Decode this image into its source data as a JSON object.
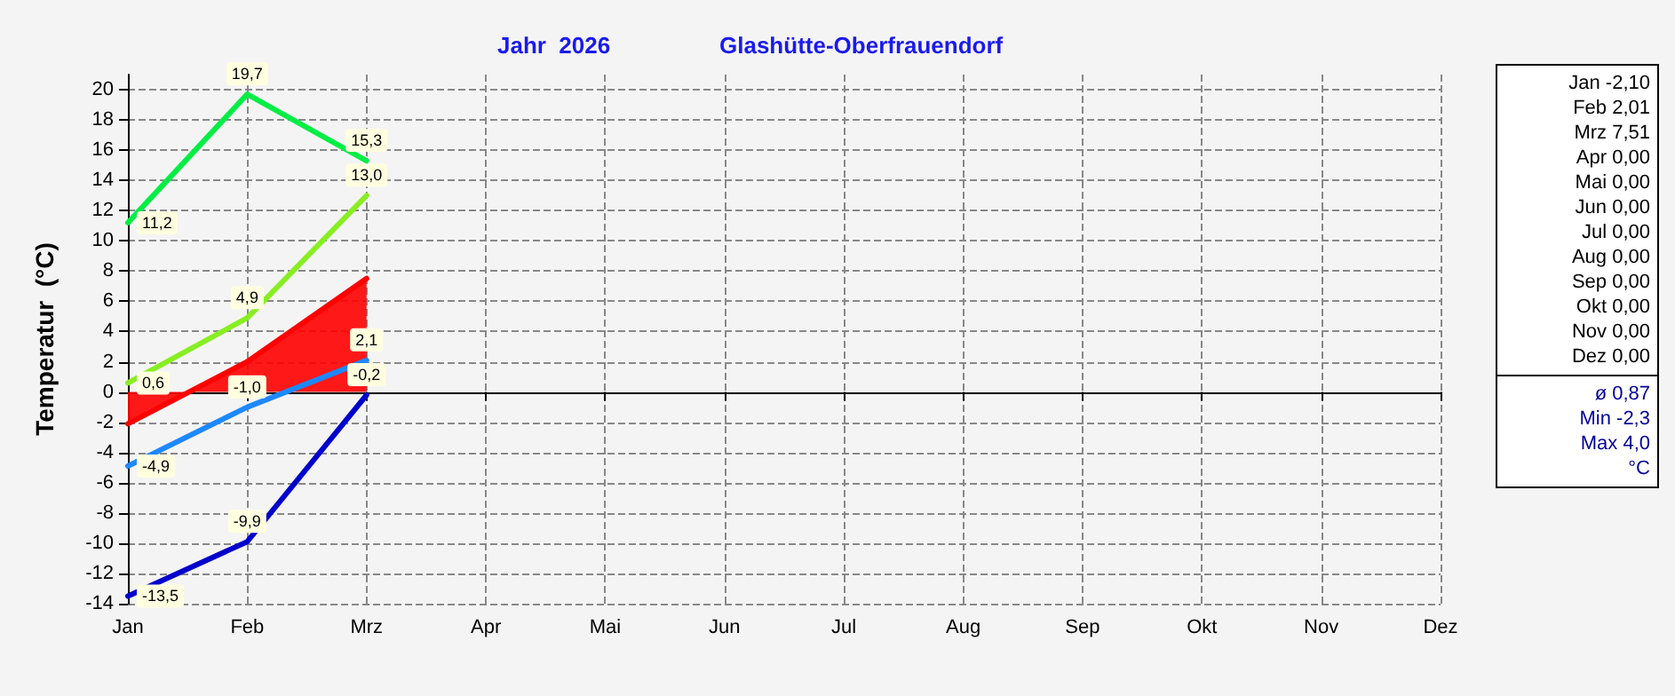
{
  "chart_data": {
    "type": "line",
    "title": "Jahr  2026",
    "subtitle": "Glashütte-Oberfrauendorf",
    "ylabel": "Temperatur  (°C)",
    "categories": [
      "Jan",
      "Feb",
      "Mrz",
      "Apr",
      "Mai",
      "Jun",
      "Jul",
      "Aug",
      "Sep",
      "Okt",
      "Nov",
      "Dez"
    ],
    "ylim": [
      -14,
      21
    ],
    "yticks": [
      -14,
      -12,
      -10,
      -8,
      -6,
      -4,
      -2,
      0,
      2,
      4,
      6,
      8,
      10,
      12,
      14,
      16,
      18,
      20
    ],
    "series": [
      {
        "type": "area",
        "color": "#ff0000",
        "values": [
          -2.1,
          2.01,
          7.51,
          null,
          null,
          null,
          null,
          null,
          null,
          null,
          null,
          null
        ]
      },
      {
        "color": "#00ee44",
        "values": [
          11.2,
          19.7,
          15.3,
          null,
          null,
          null,
          null,
          null,
          null,
          null,
          null,
          null
        ],
        "value_labels": [
          "11,2",
          "19,7",
          "15,3",
          null,
          null,
          null,
          null,
          null,
          null,
          null,
          null,
          null
        ]
      },
      {
        "color": "#88ee22",
        "values": [
          0.6,
          4.9,
          13.0,
          null,
          null,
          null,
          null,
          null,
          null,
          null,
          null,
          null
        ],
        "value_labels": [
          "0,6",
          "4,9",
          "13,0",
          null,
          null,
          null,
          null,
          null,
          null,
          null,
          null,
          null
        ]
      },
      {
        "color": "#1e88ff",
        "values": [
          -4.9,
          -1.0,
          2.1,
          null,
          null,
          null,
          null,
          null,
          null,
          null,
          null,
          null
        ],
        "value_labels": [
          "-4,9",
          "-1,0",
          "2,1",
          null,
          null,
          null,
          null,
          null,
          null,
          null,
          null,
          null
        ]
      },
      {
        "color": "#0000cc",
        "values": [
          -13.5,
          -9.9,
          -0.2,
          null,
          null,
          null,
          null,
          null,
          null,
          null,
          null,
          null
        ],
        "value_labels": [
          "-13,5",
          "-9,9",
          "-0,2",
          null,
          null,
          null,
          null,
          null,
          null,
          null,
          null,
          null
        ]
      }
    ],
    "annotations": [
      "Jan -2,10",
      "Feb 2,01",
      "Mrz 7,51",
      "Apr 0,00",
      "Mai 0,00",
      "Jun 0,00",
      "Jul 0,00",
      "Aug 0,00",
      "Sep 0,00",
      "Okt 0,00",
      "Nov 0,00",
      "Dez 0,00",
      "ø 0,87",
      "Min -2,3",
      "Max 4,0",
      "°C"
    ],
    "grid": true,
    "marker": "none",
    "line_style": "solid"
  }
}
